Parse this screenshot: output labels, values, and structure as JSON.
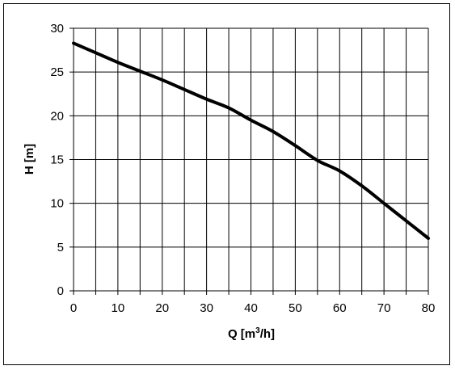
{
  "chart_data": {
    "type": "line",
    "title": "",
    "xlabel": "Q [m",
    "xlabel_sup": "3",
    "xlabel_tail": "/h]",
    "ylabel": "H [m]",
    "xlim": [
      0,
      80
    ],
    "ylim": [
      0,
      30
    ],
    "x_major_ticks": [
      0,
      10,
      20,
      30,
      40,
      50,
      60,
      70,
      80
    ],
    "y_major_ticks": [
      0,
      5,
      10,
      15,
      20,
      25,
      30
    ],
    "x_grid_step": 5,
    "y_grid_step": 5,
    "grid": true,
    "legend": "none",
    "line_color": "#000000",
    "series": [
      {
        "x": [
          0,
          5,
          10,
          15,
          20,
          25,
          30,
          35,
          40,
          45,
          50,
          55,
          60,
          65,
          70,
          75,
          80
        ],
        "y": [
          28.3,
          27.2,
          26.1,
          25.1,
          24.1,
          23.0,
          21.9,
          20.9,
          19.5,
          18.2,
          16.6,
          14.9,
          13.7,
          12.0,
          10.0,
          8.0,
          6.0
        ]
      }
    ]
  }
}
